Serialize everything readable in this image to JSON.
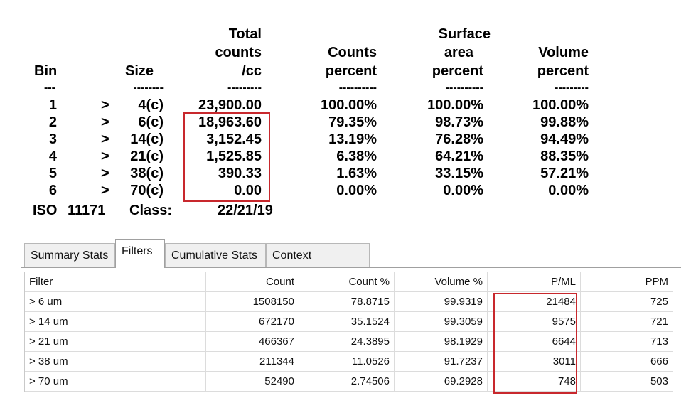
{
  "report": {
    "headers": {
      "bin": "Bin",
      "size": "Size",
      "total_1": "Total",
      "total_2": "counts",
      "total_3": "/cc",
      "counts_1": "Counts",
      "counts_2": "percent",
      "surface_1": "Surface",
      "surface_2": "area",
      "surface_3": "percent",
      "volume_1": "Volume",
      "volume_2": "percent"
    },
    "separators": {
      "bin": "---",
      "size": "--------",
      "total": "---------",
      "counts": "----------",
      "surface": "----------",
      "volume": "---------"
    },
    "rows": [
      {
        "bin": "1",
        "gt": ">",
        "size": "4(c)",
        "total": "23,900.00",
        "counts": "100.00%",
        "surface": "100.00%",
        "volume": "100.00%"
      },
      {
        "bin": "2",
        "gt": ">",
        "size": "6(c)",
        "total": "18,963.60",
        "counts": "79.35%",
        "surface": "98.73%",
        "volume": "99.88%"
      },
      {
        "bin": "3",
        "gt": ">",
        "size": "14(c)",
        "total": "3,152.45",
        "counts": "13.19%",
        "surface": "76.28%",
        "volume": "94.49%"
      },
      {
        "bin": "4",
        "gt": ">",
        "size": "21(c)",
        "total": "1,525.85",
        "counts": "6.38%",
        "surface": "64.21%",
        "volume": "88.35%"
      },
      {
        "bin": "5",
        "gt": ">",
        "size": "38(c)",
        "total": "390.33",
        "counts": "1.63%",
        "surface": "33.15%",
        "volume": "57.21%"
      },
      {
        "bin": "6",
        "gt": ">",
        "size": "70(c)",
        "total": "0.00",
        "counts": "0.00%",
        "surface": "0.00%",
        "volume": "0.00%"
      }
    ],
    "iso": {
      "label": "ISO",
      "standard": "11171",
      "class_label": "Class:",
      "class_value": "22/21/19"
    },
    "highlight_color": "#c8282d"
  },
  "tabs": [
    "Summary Stats",
    "Filters",
    "Cumulative Stats",
    "Context Summary"
  ],
  "active_tab": "Filters",
  "grid": {
    "columns": [
      "Filter",
      "Count",
      "Count %",
      "Volume %",
      "P/ML",
      "PPM"
    ],
    "rows": [
      [
        "> 6 um",
        "1508150",
        "78.8715",
        "99.9319",
        "21484",
        "725"
      ],
      [
        "> 14 um",
        "672170",
        "35.1524",
        "99.3059",
        "9575",
        "721"
      ],
      [
        "> 21 um",
        "466367",
        "24.3895",
        "98.1929",
        "6644",
        "713"
      ],
      [
        "> 38 um",
        "211344",
        "11.0526",
        "91.7237",
        "3011",
        "666"
      ],
      [
        "> 70 um",
        "52490",
        "2.74506",
        "69.2928",
        "748",
        "503"
      ]
    ]
  }
}
